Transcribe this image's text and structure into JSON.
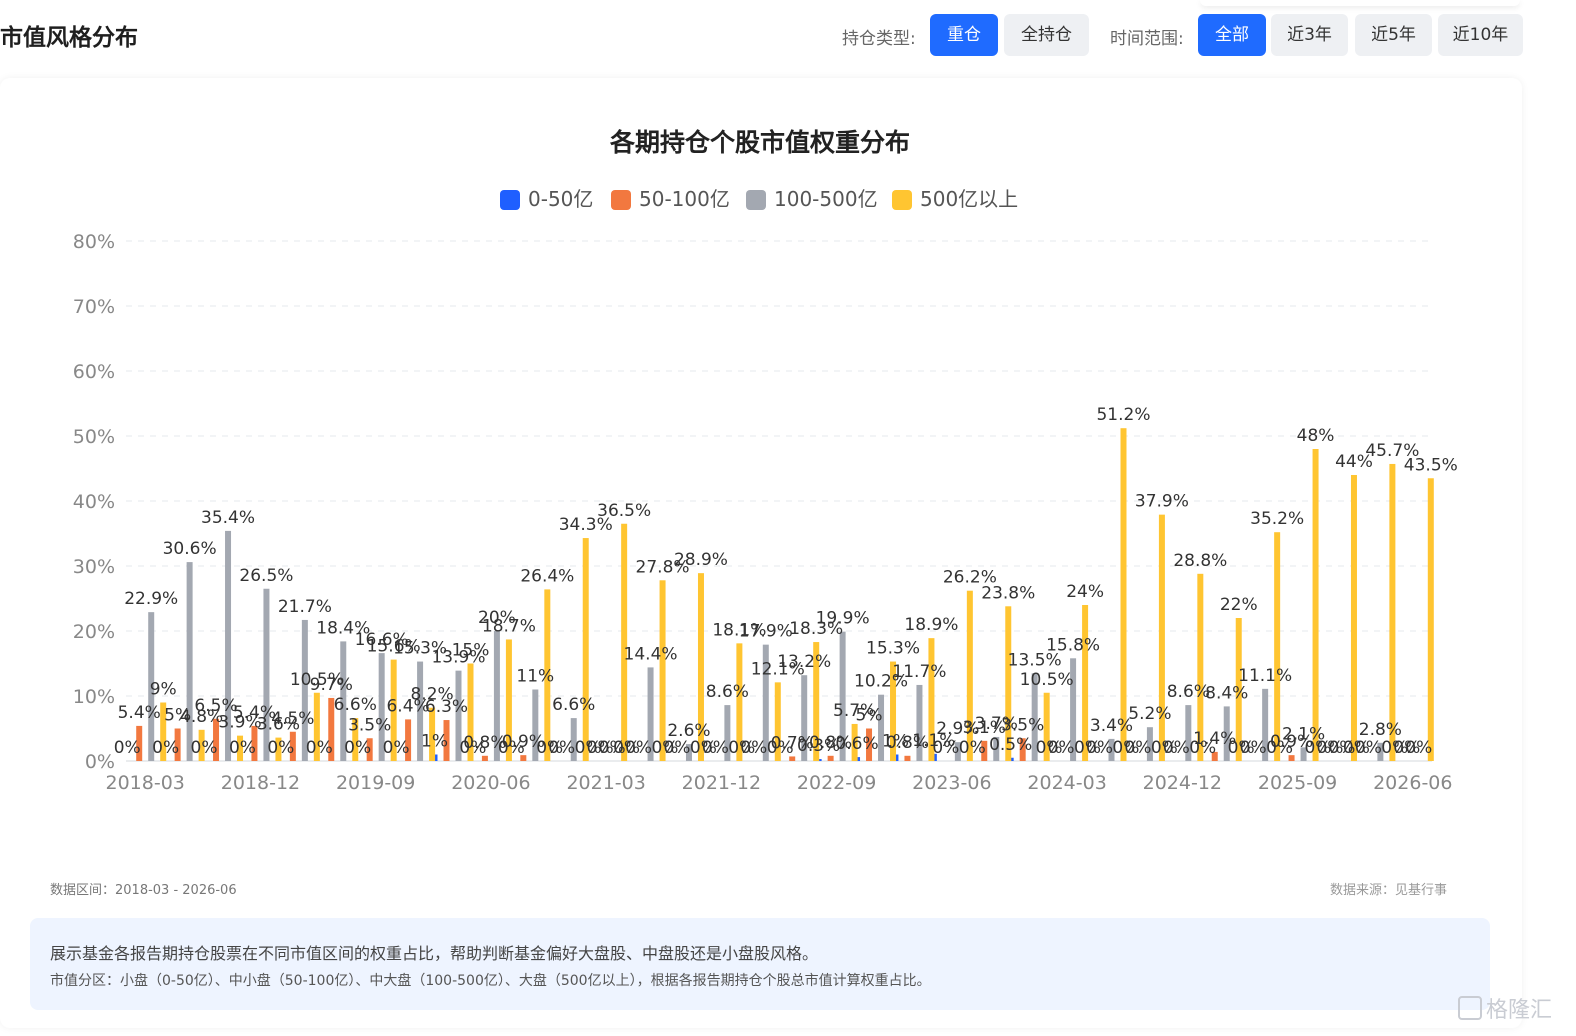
{
  "header": {
    "title": "市值风格分布",
    "position_type_label": "持仓类型:",
    "position_types": [
      "重仓",
      "全持仓"
    ],
    "position_type_selected": "重仓",
    "time_range_label": "时间范围:",
    "time_ranges": [
      "全部",
      "近3年",
      "近5年",
      "近10年"
    ],
    "time_range_selected": "全部"
  },
  "colors": {
    "accent": "#1f6bff",
    "series": [
      "#1f5fff",
      "#f2783f",
      "#a3a8b1",
      "#ffc531"
    ]
  },
  "chart_data": {
    "type": "bar",
    "title": "各期持仓个股市值权重分布",
    "xlabel": "",
    "ylabel": "",
    "ylim": [
      0,
      80
    ],
    "yticks": [
      "0%",
      "10%",
      "20%",
      "30%",
      "40%",
      "50%",
      "60%",
      "70%",
      "80%"
    ],
    "grid": true,
    "legend_position": "top-center",
    "x_tick_labels": [
      "2018-03",
      "2018-12",
      "2019-09",
      "2020-06",
      "2021-03",
      "2021-12",
      "2022-09",
      "2023-06",
      "2024-03",
      "2024-12",
      "2025-09",
      "2026-06"
    ],
    "categories": [
      "2018-03",
      "2018-06",
      "2018-09",
      "2018-12",
      "2019-03",
      "2019-06",
      "2019-09",
      "2019-12",
      "2020-03",
      "2020-06",
      "2020-09",
      "2020-12",
      "2021-03",
      "2021-06",
      "2021-09",
      "2021-12",
      "2022-03",
      "2022-06",
      "2022-09",
      "2022-12",
      "2023-03",
      "2023-06",
      "2023-09",
      "2023-12",
      "2024-03",
      "2024-06",
      "2024-09",
      "2024-12",
      "2025-03",
      "2025-06",
      "2025-09",
      "2025-12",
      "2026-03",
      "2026-06"
    ],
    "series": [
      {
        "name": "0-50亿",
        "values": [
          0,
          0,
          0,
          0,
          0,
          0,
          0,
          0,
          1,
          0,
          0,
          0,
          0,
          0,
          0,
          0,
          0,
          0,
          0.3,
          0.6,
          1,
          1.1,
          0,
          0.5,
          0,
          0,
          0,
          0,
          0,
          0,
          0,
          0,
          0,
          0
        ]
      },
      {
        "name": "50-100亿",
        "values": [
          5.4,
          5,
          6.5,
          5.4,
          4.5,
          9.7,
          3.5,
          6.4,
          6.3,
          0.8,
          0.9,
          0,
          0,
          0,
          0,
          0,
          0,
          0.7,
          0.8,
          5,
          0.8,
          0,
          3.1,
          3.5,
          0,
          0,
          0,
          0,
          1.4,
          0,
          0.9,
          0,
          0,
          0
        ]
      },
      {
        "name": "100-500亿",
        "values": [
          22.9,
          30.6,
          35.4,
          26.5,
          21.7,
          18.4,
          16.6,
          15.3,
          13.9,
          20,
          11,
          6.6,
          0,
          14.4,
          2.6,
          8.6,
          17.9,
          13.2,
          19.9,
          10.2,
          11.7,
          2.9,
          3.7,
          13.5,
          15.8,
          3.4,
          5.2,
          8.6,
          8.4,
          11.1,
          2.1,
          0,
          2.8,
          0
        ]
      },
      {
        "name": "500亿以上",
        "values": [
          9,
          4.8,
          3.9,
          3.6,
          10.5,
          6.6,
          15.6,
          8.2,
          15,
          18.7,
          26.4,
          34.3,
          36.5,
          27.8,
          28.9,
          18.1,
          12.1,
          18.3,
          5.7,
          15.3,
          18.9,
          26.2,
          23.8,
          10.5,
          24,
          51.2,
          37.9,
          28.8,
          22,
          35.2,
          48,
          44,
          45.7,
          43.5
        ]
      }
    ]
  },
  "footer": {
    "data_range": "数据区间：2018-03 - 2026-06",
    "data_source": "数据来源：见基行事"
  },
  "note": {
    "line1": "展示基金各报告期持仓股票在不同市值区间的权重占比，帮助判断基金偏好大盘股、中盘股还是小盘股风格。",
    "line2": "市值分区：小盘（0-50亿）、中小盘（50-100亿）、中大盘（100-500亿）、大盘（500亿以上），根据各报告期持仓个股总市值计算权重占比。"
  },
  "watermark": "格隆汇"
}
